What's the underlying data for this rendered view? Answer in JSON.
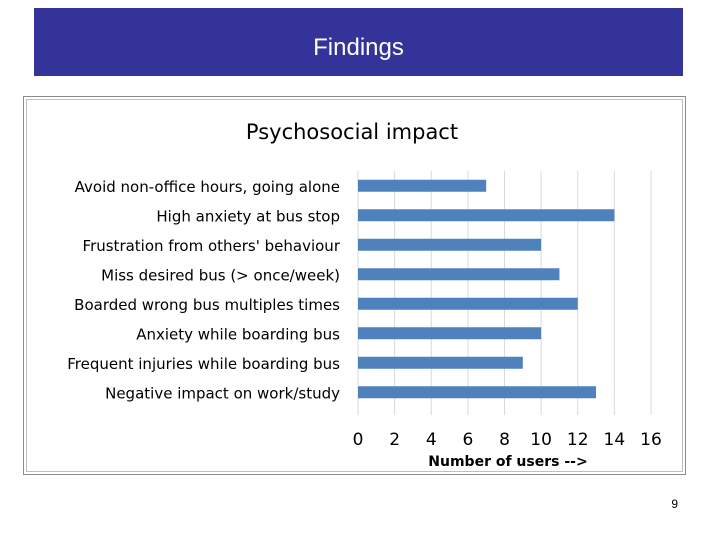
{
  "slide": {
    "title": "Findings",
    "page_number": "9"
  },
  "chart_data": {
    "type": "bar",
    "orientation": "horizontal",
    "title": "Psychosocial impact",
    "xlabel": "Number of users -->",
    "ylabel": "",
    "categories": [
      "Avoid non-office hours, going alone",
      "High anxiety at bus stop",
      "Frustration from others' behaviour",
      "Miss desired bus (> once/week)",
      "Boarded wrong bus multiples times",
      "Anxiety while boarding bus",
      "Frequent injuries while boarding bus",
      "Negative impact on work/study"
    ],
    "values": [
      7,
      14,
      10,
      11,
      12,
      10,
      9,
      13
    ],
    "xlim": [
      0,
      16
    ],
    "xticks": [
      0,
      2,
      4,
      6,
      8,
      10,
      12,
      14,
      16
    ],
    "grid": "vertical",
    "legend": "none",
    "bar_color": "#4f81bd",
    "grid_color": "#d9d9d9"
  }
}
